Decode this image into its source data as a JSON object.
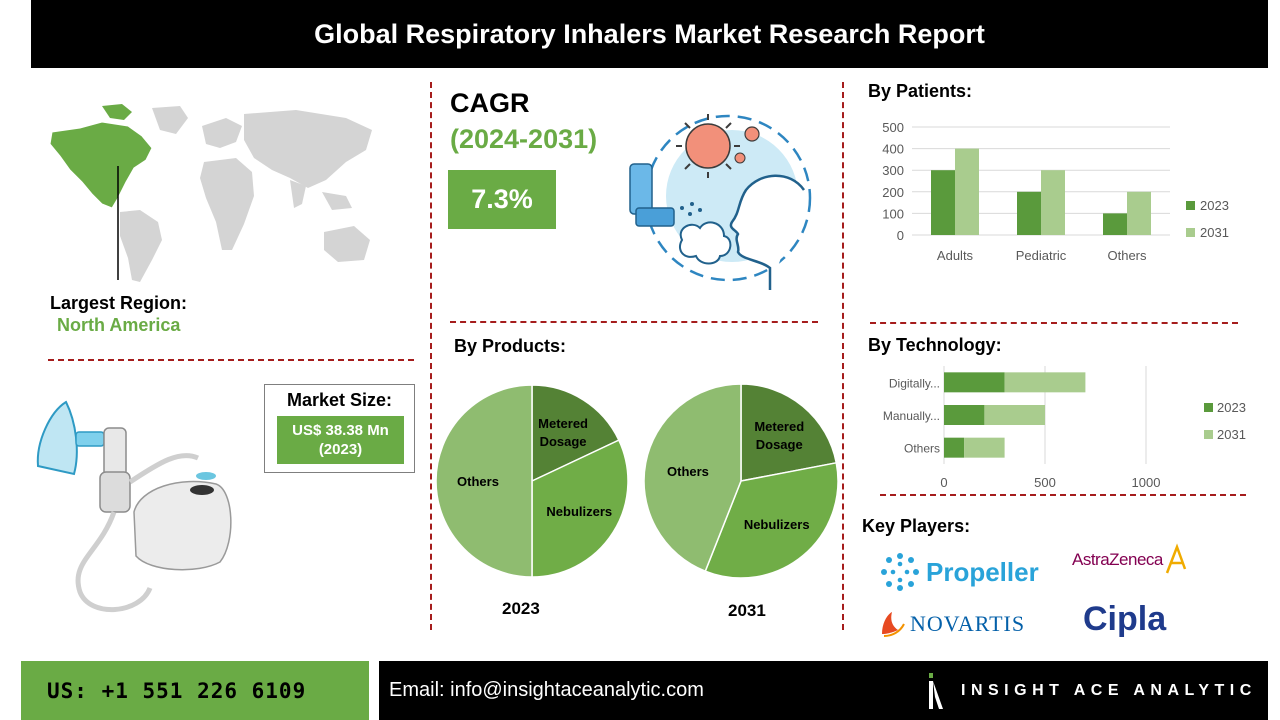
{
  "header": {
    "title": "Global Respiratory Inhalers Market Research Report"
  },
  "region": {
    "label": "Largest Region:",
    "value": "North America"
  },
  "market_size": {
    "label": "Market Size:",
    "value": "US$ 38.38 Mn",
    "year": "(2023)"
  },
  "cagr": {
    "title": "CAGR",
    "years": "(2024-2031)",
    "value": "7.3%"
  },
  "sections": {
    "patients": "By Patients:",
    "products": "By Products:",
    "technology": "By Technology:",
    "key_players": "Key Players:"
  },
  "key_players": [
    "Propeller",
    "AstraZeneca",
    "NOVARTIS",
    "Cipla"
  ],
  "colors": {
    "green": "#6aab45",
    "dark_green": "#5a9a3c",
    "light_green": "#a9cc8e",
    "pie_dark": "#548235",
    "pie_mid": "#70ad47",
    "pie_light": "#8fbc70",
    "divider": "#a51c1c"
  },
  "footer": {
    "phone": "US: +1 551 226 6109",
    "email": "Email: info@insightaceanalytic.com",
    "brand": "INSIGHT ACE ANALYTIC"
  },
  "chart_data": [
    {
      "type": "bar",
      "title": "By Patients:",
      "categories": [
        "Adults",
        "Pediatric",
        "Others"
      ],
      "series": [
        {
          "name": "2023",
          "values": [
            300,
            200,
            100
          ]
        },
        {
          "name": "2031",
          "values": [
            400,
            300,
            200
          ]
        }
      ],
      "yticks": [
        "500",
        "400",
        "300",
        "200",
        "100",
        "0"
      ],
      "ylim": [
        0,
        500
      ],
      "grid": true,
      "legend": "right"
    },
    {
      "type": "bar",
      "orientation": "horizontal",
      "stacked": true,
      "title": "By Technology:",
      "categories": [
        "Digitally...",
        "Manually...",
        "Others"
      ],
      "series": [
        {
          "name": "2023",
          "values": [
            300,
            200,
            100
          ]
        },
        {
          "name": "2031",
          "values": [
            400,
            300,
            200
          ]
        }
      ],
      "xticks": [
        "0",
        "500",
        "1000"
      ],
      "xlim": [
        0,
        1000
      ],
      "grid": true,
      "legend": "right"
    },
    {
      "type": "pie",
      "title": "By Products:",
      "label": "2023",
      "slices": [
        {
          "name": "Metered Dosage",
          "value": 18
        },
        {
          "name": "Nebulizers",
          "value": 32
        },
        {
          "name": "Others",
          "value": 50
        }
      ]
    },
    {
      "type": "pie",
      "label": "2031",
      "slices": [
        {
          "name": "Metered Dosage",
          "value": 22
        },
        {
          "name": "Nebulizers",
          "value": 34
        },
        {
          "name": "Others",
          "value": 44
        }
      ]
    }
  ]
}
